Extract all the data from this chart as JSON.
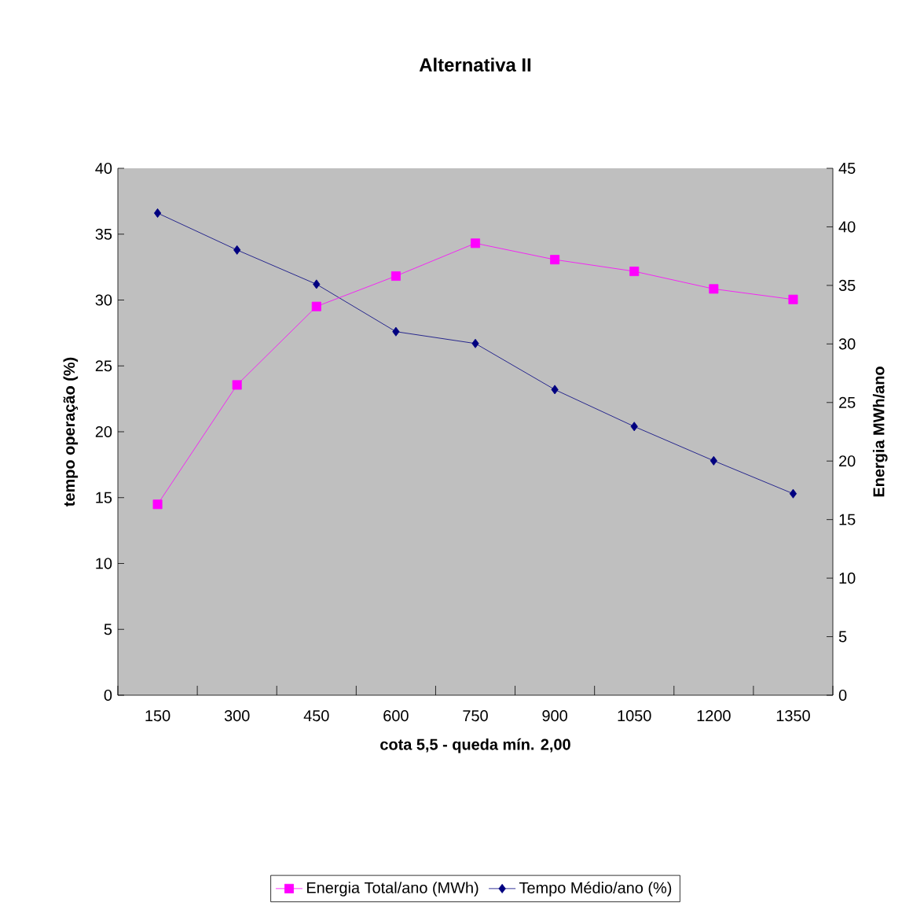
{
  "chart_data": {
    "type": "line",
    "title": "Alternativa II",
    "xlabel": "cota 5,5 - queda mín. 2,00",
    "ylabel": "tempo operação (%)",
    "y2label": "Energia MWh/ano",
    "categories": [
      "150",
      "300",
      "450",
      "600",
      "750",
      "900",
      "1050",
      "1200",
      "1350"
    ],
    "series": [
      {
        "name": "Energia Total/ano (MWh)",
        "color": "#ff00ff",
        "marker": "square",
        "axis": "y2",
        "values": [
          16.3,
          26.5,
          33.2,
          35.8,
          38.6,
          37.2,
          36.2,
          34.7,
          33.8
        ]
      },
      {
        "name": "Tempo Médio/ano (%)",
        "color": "#000080",
        "marker": "diamond",
        "values": [
          36.6,
          33.8,
          31.2,
          27.6,
          26.7,
          23.2,
          20.4,
          17.8,
          15.3
        ]
      }
    ],
    "ylim": [
      0,
      40
    ],
    "yticks": [
      0,
      5,
      10,
      15,
      20,
      25,
      30,
      35,
      40
    ],
    "y2lim": [
      0,
      45
    ],
    "y2ticks": [
      0,
      5,
      10,
      15,
      20,
      25,
      30,
      35,
      40,
      45
    ],
    "grid": false,
    "legend": "bottom"
  }
}
